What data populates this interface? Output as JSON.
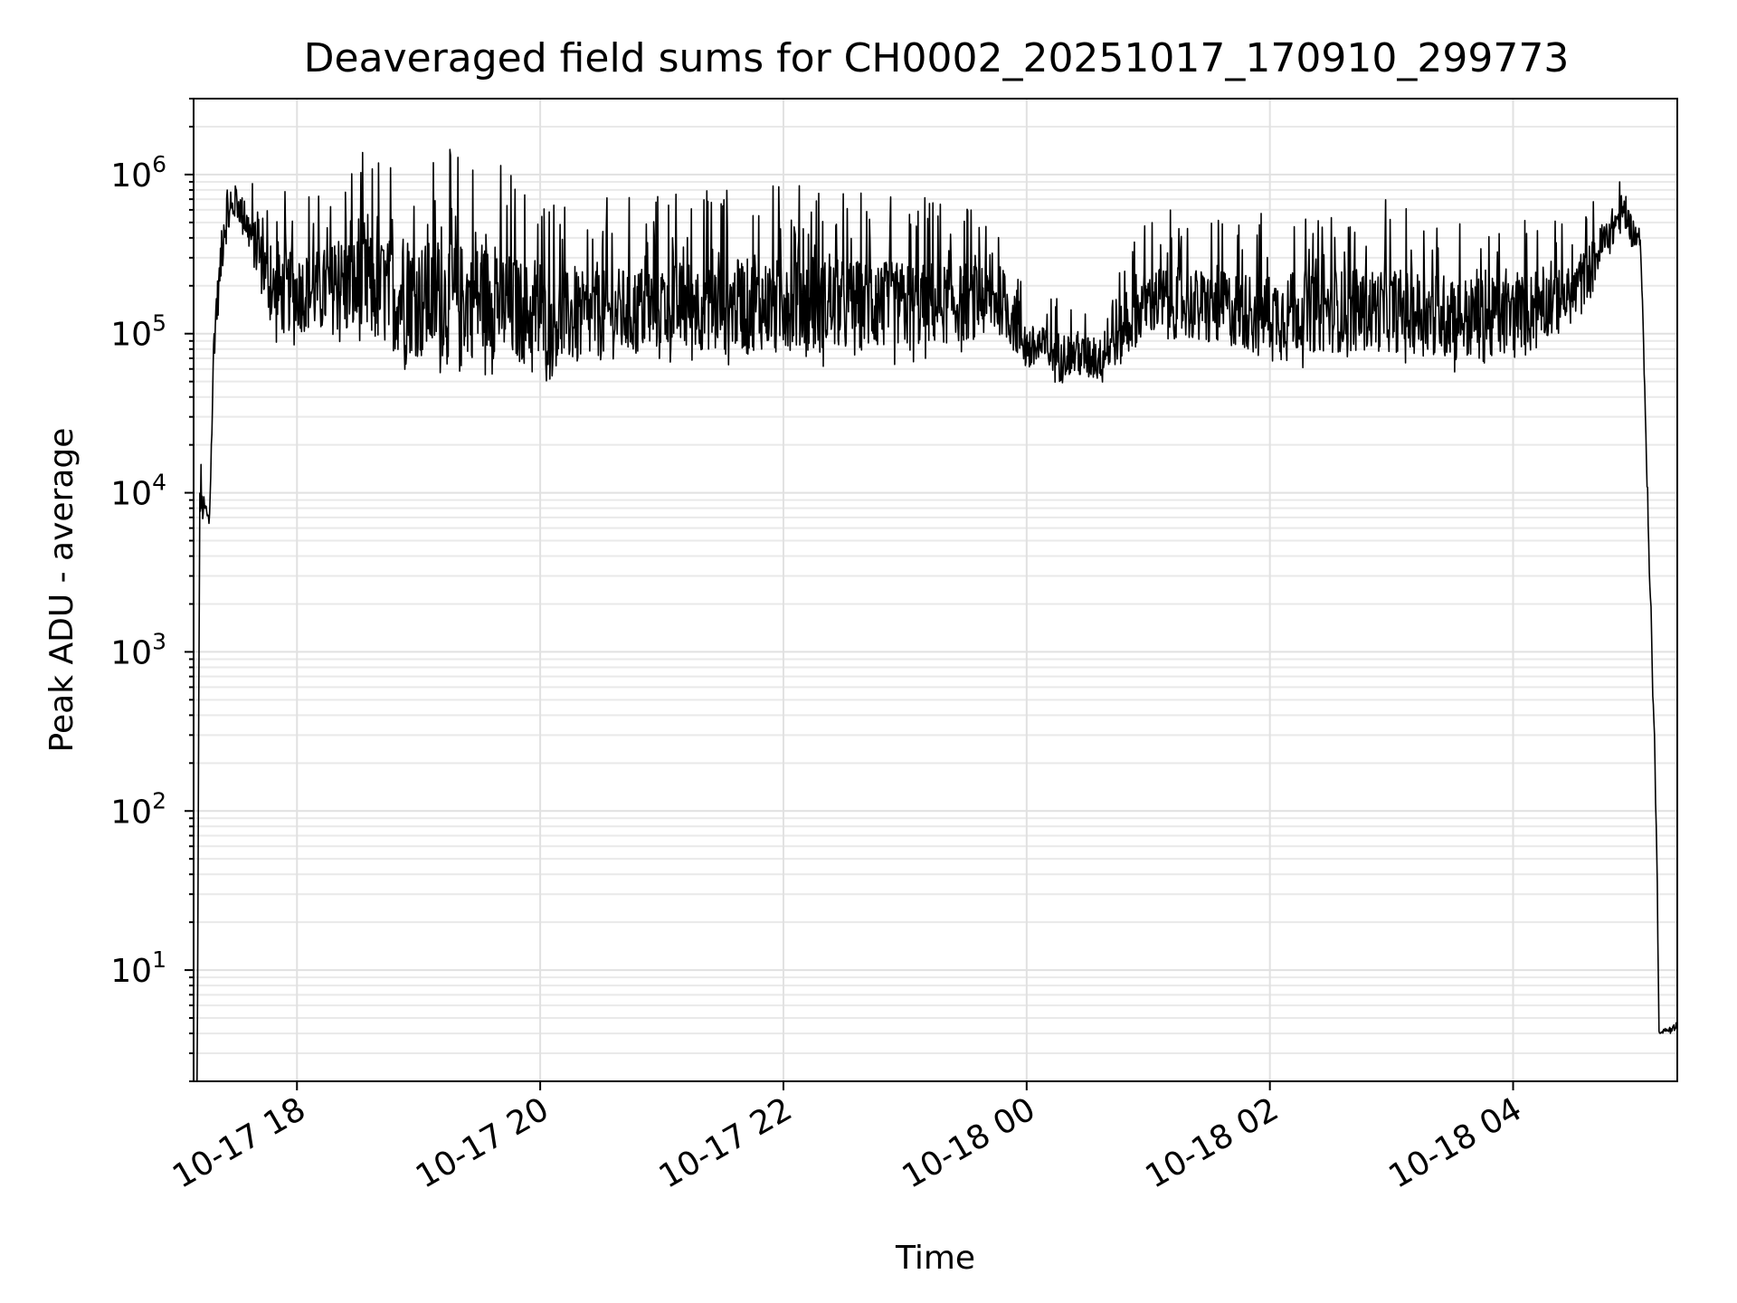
{
  "chart_data": {
    "type": "line",
    "title": "Deaveraged field sums for CH0002_20251017_170910_299773",
    "xlabel": "Time",
    "ylabel": "Peak ADU - average",
    "yscale": "log",
    "ylim": [
      2,
      3000000
    ],
    "xlim_hours": [
      -0.85,
      11.35
    ],
    "x_tick_hours": [
      0,
      2,
      4,
      6,
      8,
      10
    ],
    "x_tick_labels": [
      "10-17 18",
      "10-17 20",
      "10-17 22",
      "10-18 00",
      "10-18 02",
      "10-18 04"
    ],
    "y_tick_values": [
      10,
      100,
      1000,
      10000,
      100000,
      1000000
    ],
    "y_tick_base": "10",
    "y_tick_exponents": [
      "1",
      "2",
      "3",
      "4",
      "5",
      "6"
    ],
    "grid": true,
    "series": [
      {
        "name": "Peak ADU - average",
        "color": "#000000",
        "x_start_hour": -0.85,
        "x_end_hour": 11.35,
        "sample_count": 2600,
        "envelope": [
          {
            "hour": -0.82,
            "low": 2,
            "high": 2
          },
          {
            "hour": -0.8,
            "low": 6000,
            "high": 18000
          },
          {
            "hour": -0.72,
            "low": 5500,
            "high": 9000
          },
          {
            "hour": -0.68,
            "low": 60000,
            "high": 250000
          },
          {
            "hour": -0.6,
            "low": 300000,
            "high": 900000
          },
          {
            "hour": -0.5,
            "low": 500000,
            "high": 1300000
          },
          {
            "hour": -0.4,
            "low": 300000,
            "high": 1000000
          },
          {
            "hour": -0.2,
            "low": 80000,
            "high": 800000
          },
          {
            "hour": 0.2,
            "low": 80000,
            "high": 900000
          },
          {
            "hour": 0.4,
            "low": 70000,
            "high": 1400000
          },
          {
            "hour": 1.0,
            "low": 50000,
            "high": 1500000
          },
          {
            "hour": 1.6,
            "low": 50000,
            "high": 1400000
          },
          {
            "hour": 2.0,
            "low": 45000,
            "high": 800000
          },
          {
            "hour": 2.4,
            "low": 50000,
            "high": 700000
          },
          {
            "hour": 3.0,
            "low": 60000,
            "high": 800000
          },
          {
            "hour": 4.0,
            "low": 60000,
            "high": 900000
          },
          {
            "hour": 5.0,
            "low": 60000,
            "high": 800000
          },
          {
            "hour": 5.8,
            "low": 80000,
            "high": 600000
          },
          {
            "hour": 6.0,
            "low": 50000,
            "high": 200000
          },
          {
            "hour": 6.6,
            "low": 45000,
            "high": 150000
          },
          {
            "hour": 7.0,
            "low": 80000,
            "high": 600000
          },
          {
            "hour": 8.0,
            "low": 60000,
            "high": 600000
          },
          {
            "hour": 9.0,
            "low": 60000,
            "high": 700000
          },
          {
            "hour": 9.8,
            "low": 50000,
            "high": 600000
          },
          {
            "hour": 10.5,
            "low": 100000,
            "high": 500000
          },
          {
            "hour": 10.9,
            "low": 400000,
            "high": 1200000
          },
          {
            "hour": 11.05,
            "low": 300000,
            "high": 500000
          },
          {
            "hour": 11.13,
            "low": 1500,
            "high": 3000
          },
          {
            "hour": 11.18,
            "low": 60,
            "high": 120
          },
          {
            "hour": 11.2,
            "low": 4,
            "high": 4
          },
          {
            "hour": 11.32,
            "low": 4,
            "high": 5
          }
        ]
      }
    ]
  }
}
